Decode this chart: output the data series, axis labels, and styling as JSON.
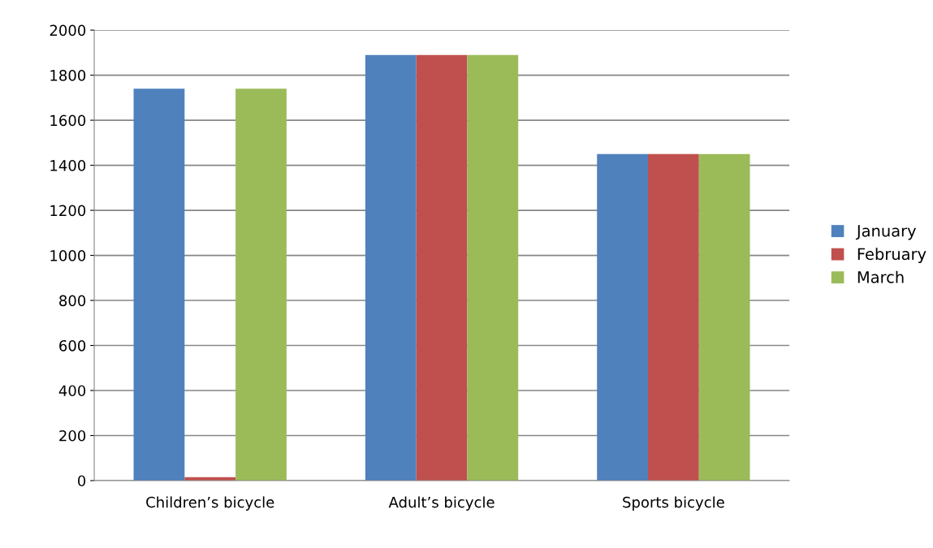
{
  "chart_data": {
    "type": "bar",
    "categories": [
      "Children’s bicycle",
      "Adult’s bicycle",
      "Sports bicycle"
    ],
    "series": [
      {
        "name": "January",
        "color": "#4f81bd",
        "values": [
          1740,
          1890,
          1450
        ]
      },
      {
        "name": "February",
        "color": "#c0504d",
        "values": [
          15,
          1890,
          1450
        ]
      },
      {
        "name": "March",
        "color": "#9bbb59",
        "values": [
          1740,
          1890,
          1450
        ]
      }
    ],
    "ylim": [
      0,
      2000
    ],
    "yticks": [
      0,
      200,
      400,
      600,
      800,
      1000,
      1200,
      1400,
      1600,
      1800,
      2000
    ],
    "grid": "y",
    "legend": "right"
  }
}
